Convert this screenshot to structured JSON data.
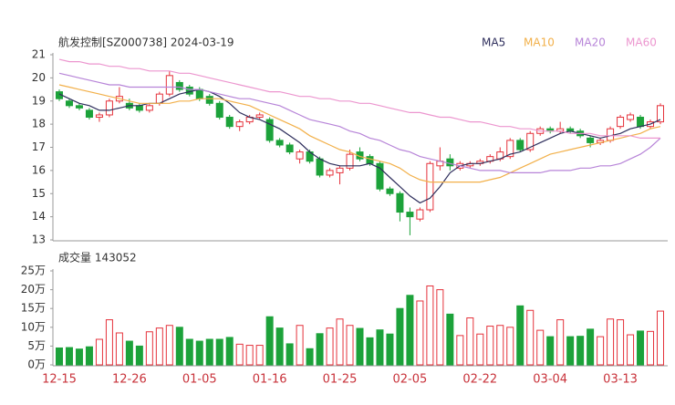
{
  "chart_data": {
    "type": "candlestick",
    "title": "航发控制[SZ000738] 2024-03-19",
    "categories": [
      "12-15",
      null,
      null,
      null,
      null,
      null,
      null,
      "12-26",
      null,
      null,
      null,
      null,
      null,
      null,
      "01-05",
      null,
      null,
      null,
      null,
      null,
      null,
      "01-16",
      null,
      null,
      null,
      null,
      null,
      null,
      "01-25",
      null,
      null,
      null,
      null,
      null,
      null,
      "02-05",
      null,
      null,
      null,
      null,
      null,
      null,
      "02-22",
      null,
      null,
      null,
      null,
      null,
      null,
      "03-04",
      null,
      null,
      null,
      null,
      null,
      null,
      "03-13",
      null,
      null,
      null,
      null
    ],
    "open": [
      19.4,
      19.0,
      18.8,
      18.6,
      18.3,
      18.4,
      19.0,
      18.9,
      18.8,
      18.6,
      18.9,
      19.3,
      19.8,
      19.6,
      19.5,
      19.2,
      18.9,
      18.3,
      17.9,
      18.1,
      18.3,
      18.2,
      17.3,
      17.1,
      16.5,
      16.8,
      16.5,
      15.8,
      15.9,
      16.1,
      16.8,
      16.6,
      16.3,
      15.2,
      15.0,
      14.2,
      13.9,
      14.3,
      16.2,
      16.5,
      16.1,
      16.2,
      16.3,
      16.4,
      16.5,
      16.6,
      17.3,
      16.9,
      17.6,
      17.8,
      17.7,
      17.8,
      17.7,
      17.4,
      17.2,
      17.3,
      17.9,
      18.2,
      18.3,
      17.9,
      18.1
    ],
    "high": [
      19.5,
      19.1,
      18.9,
      18.7,
      18.5,
      19.1,
      19.6,
      19.1,
      18.9,
      18.9,
      19.4,
      20.3,
      19.9,
      19.7,
      19.6,
      19.3,
      19.0,
      18.4,
      18.2,
      18.4,
      18.5,
      18.3,
      17.4,
      17.2,
      16.9,
      16.9,
      16.6,
      16.1,
      16.2,
      16.9,
      17.0,
      16.7,
      16.4,
      15.3,
      15.1,
      14.4,
      14.4,
      16.4,
      17.0,
      16.7,
      16.4,
      16.4,
      16.5,
      16.7,
      17.0,
      17.4,
      17.4,
      17.7,
      17.9,
      17.9,
      18.1,
      17.9,
      17.8,
      17.5,
      17.4,
      17.9,
      18.4,
      18.5,
      18.4,
      18.2,
      18.9
    ],
    "low": [
      19.0,
      18.7,
      18.6,
      18.2,
      18.1,
      18.3,
      18.9,
      18.6,
      18.5,
      18.5,
      18.8,
      19.2,
      19.4,
      19.2,
      19.0,
      18.8,
      18.2,
      17.8,
      17.7,
      18.0,
      18.2,
      17.2,
      17.0,
      16.7,
      16.3,
      16.3,
      15.7,
      15.7,
      15.4,
      16.0,
      16.4,
      16.2,
      15.1,
      14.9,
      13.8,
      13.2,
      13.8,
      14.2,
      16.0,
      16.0,
      16.0,
      16.1,
      16.2,
      16.3,
      16.4,
      16.5,
      16.8,
      16.8,
      17.5,
      17.6,
      17.6,
      17.6,
      17.4,
      17.0,
      17.1,
      17.2,
      17.8,
      18.1,
      17.8,
      17.8,
      18.0
    ],
    "close": [
      19.1,
      18.8,
      18.7,
      18.3,
      18.4,
      19.0,
      19.2,
      18.7,
      18.6,
      18.8,
      19.3,
      20.1,
      19.5,
      19.3,
      19.1,
      18.9,
      18.3,
      17.9,
      18.1,
      18.3,
      18.4,
      17.3,
      17.1,
      16.8,
      16.8,
      16.4,
      15.8,
      16.0,
      16.1,
      16.7,
      16.5,
      16.3,
      15.2,
      15.0,
      14.2,
      14.0,
      14.3,
      16.3,
      16.4,
      16.2,
      16.3,
      16.3,
      16.4,
      16.6,
      16.8,
      17.3,
      16.9,
      17.6,
      17.8,
      17.7,
      17.8,
      17.7,
      17.5,
      17.2,
      17.3,
      17.8,
      18.3,
      18.4,
      17.9,
      18.1,
      18.8
    ],
    "up_color": "#e5323b",
    "down_color": "#1ca23a",
    "ylim": [
      13,
      21
    ],
    "yticks": [
      13,
      14,
      15,
      16,
      17,
      18,
      19,
      20,
      21
    ],
    "series": [
      {
        "name": "MA5",
        "color": "#2e2e5c",
        "values": [
          19.3,
          19.1,
          18.9,
          18.8,
          18.6,
          18.6,
          18.7,
          18.8,
          18.8,
          18.9,
          18.9,
          19.1,
          19.3,
          19.4,
          19.5,
          19.4,
          19.2,
          18.9,
          18.5,
          18.3,
          18.2,
          18.0,
          17.8,
          17.5,
          17.2,
          16.8,
          16.5,
          16.3,
          16.2,
          16.2,
          16.2,
          16.3,
          16.1,
          15.7,
          15.3,
          14.9,
          14.6,
          14.8,
          15.3,
          15.9,
          16.2,
          16.3,
          16.3,
          16.4,
          16.5,
          16.7,
          16.8,
          17.0,
          17.2,
          17.4,
          17.6,
          17.7,
          17.6,
          17.5,
          17.4,
          17.5,
          17.6,
          17.8,
          17.9,
          18.0,
          18.2
        ]
      },
      {
        "name": "MA10",
        "color": "#f2b04a",
        "values": [
          19.7,
          19.6,
          19.5,
          19.4,
          19.3,
          19.2,
          19.1,
          19.0,
          18.9,
          18.9,
          18.9,
          18.9,
          19.0,
          19.0,
          19.1,
          19.1,
          19.1,
          19.0,
          18.9,
          18.8,
          18.6,
          18.4,
          18.2,
          18.0,
          17.8,
          17.5,
          17.3,
          17.1,
          16.9,
          16.8,
          16.6,
          16.5,
          16.4,
          16.3,
          16.1,
          15.8,
          15.6,
          15.5,
          15.5,
          15.5,
          15.5,
          15.5,
          15.5,
          15.6,
          15.7,
          15.9,
          16.1,
          16.3,
          16.5,
          16.7,
          16.8,
          16.9,
          17.0,
          17.1,
          17.2,
          17.3,
          17.4,
          17.5,
          17.6,
          17.8,
          17.9
        ]
      },
      {
        "name": "MA20",
        "color": "#b784d8",
        "values": [
          20.2,
          20.1,
          20.0,
          19.9,
          19.8,
          19.7,
          19.7,
          19.6,
          19.6,
          19.6,
          19.6,
          19.6,
          19.6,
          19.5,
          19.5,
          19.4,
          19.3,
          19.2,
          19.1,
          19.1,
          19.0,
          18.9,
          18.8,
          18.6,
          18.4,
          18.2,
          18.1,
          18.0,
          17.9,
          17.7,
          17.6,
          17.4,
          17.3,
          17.1,
          16.9,
          16.8,
          16.6,
          16.5,
          16.4,
          16.3,
          16.2,
          16.1,
          16.0,
          16.0,
          16.0,
          15.9,
          15.9,
          15.9,
          15.9,
          16.0,
          16.0,
          16.0,
          16.1,
          16.1,
          16.2,
          16.2,
          16.3,
          16.5,
          16.7,
          17.0,
          17.4
        ]
      },
      {
        "name": "MA60",
        "color": "#ec96cf",
        "values": [
          20.8,
          20.7,
          20.7,
          20.6,
          20.6,
          20.5,
          20.5,
          20.4,
          20.4,
          20.3,
          20.3,
          20.3,
          20.2,
          20.2,
          20.1,
          20.0,
          19.9,
          19.8,
          19.7,
          19.6,
          19.5,
          19.4,
          19.4,
          19.3,
          19.2,
          19.2,
          19.1,
          19.1,
          19.0,
          19.0,
          18.9,
          18.9,
          18.8,
          18.7,
          18.6,
          18.5,
          18.5,
          18.4,
          18.3,
          18.3,
          18.2,
          18.1,
          18.1,
          18.0,
          17.9,
          17.9,
          17.8,
          17.8,
          17.7,
          17.7,
          17.7,
          17.6,
          17.6,
          17.6,
          17.5,
          17.5,
          17.5,
          17.5,
          17.4,
          17.4,
          17.4
        ]
      }
    ],
    "volume": {
      "title": "成交量 143052",
      "values": [
        4.5,
        4.6,
        4.2,
        4.8,
        6.8,
        12,
        8.5,
        6.3,
        5,
        8.8,
        9.8,
        10.5,
        10,
        6.8,
        6.3,
        6.8,
        6.8,
        7.3,
        5.5,
        5.2,
        5.2,
        12.8,
        9.8,
        5.6,
        10.5,
        4.3,
        8.3,
        9.8,
        12.2,
        10.5,
        9.7,
        7.2,
        9.3,
        8.2,
        15,
        18.5,
        17,
        21,
        20,
        13.5,
        7.8,
        12.5,
        8.2,
        10.3,
        10.5,
        10,
        15.7,
        14.5,
        9.2,
        7.5,
        12,
        7.5,
        7.6,
        9.5,
        7.5,
        12.2,
        12,
        8,
        9,
        8.9,
        14.3052
      ],
      "ylim": [
        0,
        25
      ],
      "yticks": [
        {
          "value": 0,
          "label": "0万"
        },
        {
          "value": 5,
          "label": "5万"
        },
        {
          "value": 10,
          "label": "10万"
        },
        {
          "value": 15,
          "label": "15万"
        },
        {
          "value": 20,
          "label": "20万"
        },
        {
          "value": 25,
          "label": "25万"
        }
      ]
    }
  }
}
